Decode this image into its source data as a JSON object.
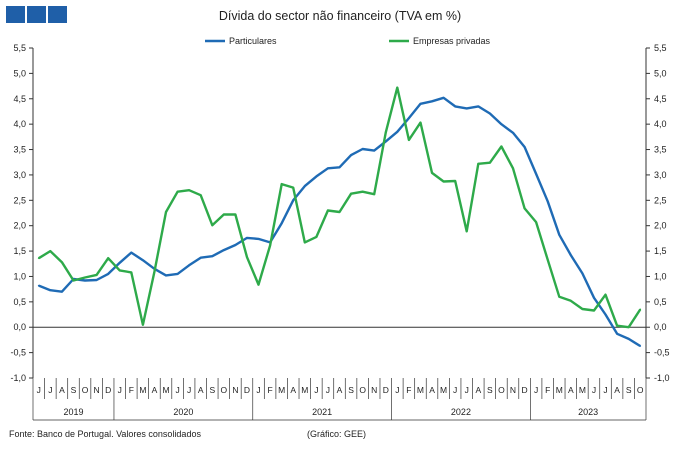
{
  "footer": {
    "source": "Fonte: Banco de Portugal. Valores consolidados",
    "credit": "(Gráfico: GEE)"
  },
  "colors": {
    "particulares": "#1f6bb5",
    "empresas": "#2eaa4a",
    "logo": "#1f5fa8"
  },
  "chart_data": {
    "type": "line",
    "title": "Dívida do sector não financeiro (TVA em %)",
    "ylim": [
      -1.0,
      5.5
    ],
    "y_ticks": [
      "5,5",
      "5,0",
      "4,5",
      "4,0",
      "3,5",
      "3,0",
      "2,5",
      "2,0",
      "1,5",
      "1,0",
      "0,5",
      "0,0",
      "-0,5",
      "-1,0"
    ],
    "grid": false,
    "legend_position": "top-center",
    "x": [
      "2019-06",
      "2019-07",
      "2019-08",
      "2019-09",
      "2019-10",
      "2019-11",
      "2019-12",
      "2020-01",
      "2020-02",
      "2020-03",
      "2020-04",
      "2020-05",
      "2020-06",
      "2020-07",
      "2020-08",
      "2020-09",
      "2020-10",
      "2020-11",
      "2020-12",
      "2021-01",
      "2021-02",
      "2021-03",
      "2021-04",
      "2021-05",
      "2021-06",
      "2021-07",
      "2021-08",
      "2021-09",
      "2021-10",
      "2021-11",
      "2021-12",
      "2022-01",
      "2022-02",
      "2022-03",
      "2022-04",
      "2022-05",
      "2022-06",
      "2022-07",
      "2022-08",
      "2022-09",
      "2022-10",
      "2022-11",
      "2022-12",
      "2023-01",
      "2023-02",
      "2023-03",
      "2023-04",
      "2023-05",
      "2023-06",
      "2023-07",
      "2023-08",
      "2023-09",
      "2023-10"
    ],
    "month_labels": [
      "J",
      "J",
      "A",
      "S",
      "O",
      "N",
      "D",
      "J",
      "F",
      "M",
      "A",
      "M",
      "J",
      "J",
      "A",
      "S",
      "O",
      "N",
      "D",
      "J",
      "F",
      "M",
      "A",
      "M",
      "J",
      "J",
      "A",
      "S",
      "O",
      "N",
      "D",
      "J",
      "F",
      "M",
      "A",
      "M",
      "J",
      "J",
      "A",
      "S",
      "O",
      "N",
      "D",
      "J",
      "F",
      "M",
      "A",
      "M",
      "J",
      "J",
      "A",
      "S",
      "O"
    ],
    "year_labels": [
      {
        "label": "2019",
        "start": 0,
        "end": 6
      },
      {
        "label": "2020",
        "start": 7,
        "end": 18
      },
      {
        "label": "2021",
        "start": 19,
        "end": 30
      },
      {
        "label": "2022",
        "start": 31,
        "end": 42
      },
      {
        "label": "2023",
        "start": 43,
        "end": 52
      }
    ],
    "series": [
      {
        "name": "Particulares",
        "color": "#1f6bb5",
        "values": [
          0.82,
          0.73,
          0.7,
          0.95,
          0.92,
          0.93,
          1.05,
          1.27,
          1.47,
          1.32,
          1.15,
          1.02,
          1.05,
          1.22,
          1.37,
          1.4,
          1.52,
          1.62,
          1.76,
          1.74,
          1.67,
          2.05,
          2.5,
          2.78,
          2.97,
          3.13,
          3.15,
          3.39,
          3.51,
          3.48,
          3.66,
          3.85,
          4.12,
          4.4,
          4.45,
          4.52,
          4.35,
          4.31,
          4.35,
          4.21,
          4.0,
          3.83,
          3.55,
          3.02,
          2.48,
          1.82,
          1.42,
          1.06,
          0.58,
          0.25,
          -0.13,
          -0.23,
          -0.37
        ]
      },
      {
        "name": "Empresas privadas",
        "color": "#2eaa4a",
        "values": [
          1.36,
          1.5,
          1.28,
          0.92,
          0.98,
          1.03,
          1.36,
          1.12,
          1.08,
          0.05,
          1.09,
          2.27,
          2.67,
          2.7,
          2.6,
          2.01,
          2.22,
          2.22,
          1.38,
          0.84,
          1.61,
          2.82,
          2.75,
          1.67,
          1.78,
          2.3,
          2.27,
          2.63,
          2.67,
          2.62,
          3.84,
          4.72,
          3.69,
          4.03,
          3.04,
          2.87,
          2.88,
          1.89,
          3.22,
          3.24,
          3.56,
          3.13,
          2.34,
          2.07,
          1.33,
          0.6,
          0.52,
          0.36,
          0.33,
          0.64,
          0.03,
          0.0,
          0.35
        ]
      }
    ]
  }
}
